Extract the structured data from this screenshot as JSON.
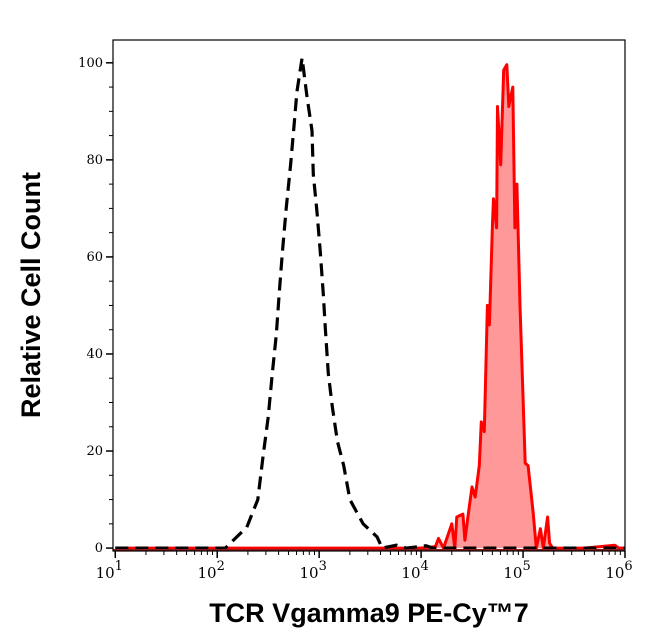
{
  "chart_data": {
    "type": "area",
    "title": "",
    "xlabel": "TCR Vgamma9 PE-Cy™7",
    "ylabel": "Relative Cell Count",
    "x_scale": "log",
    "xlim": [
      9.5,
      1000000
    ],
    "ylim": [
      -0.6,
      104.7
    ],
    "grid": false,
    "x_ticks": [
      {
        "base": "10",
        "exp": "1",
        "value": 10
      },
      {
        "base": "10",
        "exp": "2",
        "value": 100
      },
      {
        "base": "10",
        "exp": "3",
        "value": 1000
      },
      {
        "base": "10",
        "exp": "4",
        "value": 10000
      },
      {
        "base": "10",
        "exp": "5",
        "value": 100000
      },
      {
        "base": "10",
        "exp": "6",
        "value": 1000000
      }
    ],
    "y_ticks": [
      "0",
      "20",
      "40",
      "60",
      "80",
      "100"
    ],
    "series": [
      {
        "style": "dashed-line",
        "color": "#000000",
        "x": [
          10,
          120,
          195,
          250,
          282,
          316,
          347,
          380,
          407,
          436,
          475,
          525,
          562,
          605,
          680,
          760,
          850,
          875,
          955,
          1025,
          1100,
          1150,
          1230,
          1350,
          1510,
          1740,
          2000,
          2700,
          3700,
          4150,
          5750,
          7200,
          11200,
          13000,
          1000000
        ],
        "y": [
          0,
          0,
          4.3,
          10,
          19,
          27,
          36,
          44,
          53,
          61,
          70,
          79,
          86,
          94,
          101,
          93,
          86,
          77,
          69,
          61,
          52,
          45,
          36,
          29,
          22,
          17,
          10,
          5,
          2.3,
          0,
          0.6,
          0,
          0.5,
          0,
          0
        ]
      },
      {
        "style": "filled",
        "color": "#ff0000",
        "fill": "#ff9999",
        "x": [
          10,
          9800,
          13800,
          14800,
          16600,
          20000,
          21400,
          22400,
          25700,
          26900,
          28800,
          31600,
          33900,
          37200,
          38900,
          41700,
          44700,
          46800,
          50100,
          51300,
          55000,
          56200,
          60300,
          64600,
          69200,
          72400,
          79400,
          83200,
          87100,
          93300,
          105000,
          112000,
          126000,
          135000,
          148000,
          158000,
          174000,
          182000,
          195000,
          400000,
          794000,
          870000,
          1000000
        ],
        "y": [
          0,
          0,
          0.3,
          2,
          0,
          5,
          0,
          6.4,
          7,
          1.6,
          6.4,
          12.6,
          10.5,
          17,
          26,
          24,
          50,
          46,
          67,
          72,
          66,
          91,
          79,
          98.5,
          99.6,
          91,
          95,
          66,
          75,
          50,
          17.5,
          17,
          7,
          0,
          4,
          0,
          6.4,
          1,
          0,
          0,
          0.6,
          0,
          0
        ]
      }
    ]
  }
}
